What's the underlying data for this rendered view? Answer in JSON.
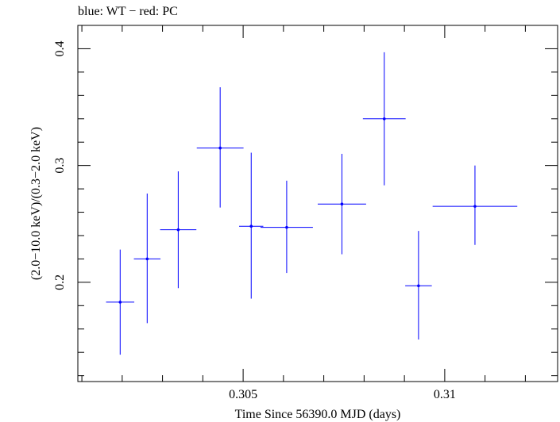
{
  "chart_data": {
    "type": "scatter",
    "title": "blue: WT − red: PC",
    "xlabel": "Time Since 56390.0 MJD (days)",
    "ylabel": "(2.0−10.0 keV)/(0.3−2.0 keV)",
    "xlim": [
      0.3009,
      0.3128
    ],
    "ylim": [
      0.115,
      0.42
    ],
    "x_major_ticks": [
      0.305,
      0.31
    ],
    "x_tick_labels": [
      "0.305",
      "0.31"
    ],
    "y_major_ticks": [
      0.2,
      0.3,
      0.4
    ],
    "y_tick_labels": [
      "0.2",
      "0.3",
      "0.4"
    ],
    "grid": false,
    "series": [
      {
        "color": "#0000ff",
        "points": [
          {
            "x": 0.30195,
            "xerr": 0.00035,
            "y": 0.183,
            "ylo": 0.138,
            "yhi": 0.228
          },
          {
            "x": 0.30262,
            "xerr": 0.00033,
            "y": 0.22,
            "ylo": 0.165,
            "yhi": 0.276
          },
          {
            "x": 0.30339,
            "xerr": 0.00045,
            "y": 0.245,
            "ylo": 0.195,
            "yhi": 0.295
          },
          {
            "x": 0.30443,
            "xerr": 0.00058,
            "y": 0.315,
            "ylo": 0.264,
            "yhi": 0.367
          },
          {
            "x": 0.3052,
            "xerr": 0.0003,
            "y": 0.248,
            "ylo": 0.186,
            "yhi": 0.311
          },
          {
            "x": 0.30608,
            "xerr": 0.00065,
            "y": 0.247,
            "ylo": 0.208,
            "yhi": 0.287
          },
          {
            "x": 0.30745,
            "xerr": 0.0006,
            "y": 0.267,
            "ylo": 0.224,
            "yhi": 0.31
          },
          {
            "x": 0.3085,
            "xerr": 0.00053,
            "y": 0.34,
            "ylo": 0.283,
            "yhi": 0.397
          },
          {
            "x": 0.30935,
            "xerr": 0.00033,
            "y": 0.197,
            "ylo": 0.151,
            "yhi": 0.244
          },
          {
            "x": 0.31075,
            "xerr": 0.00105,
            "y": 0.265,
            "ylo": 0.232,
            "yhi": 0.3
          }
        ]
      }
    ]
  }
}
